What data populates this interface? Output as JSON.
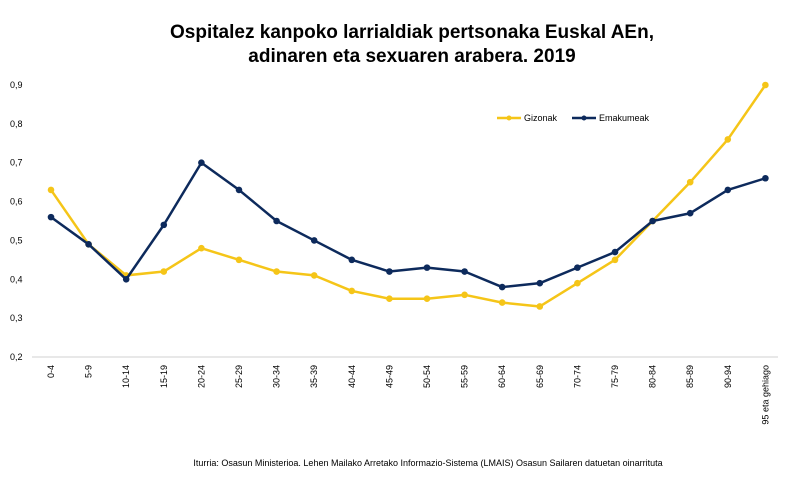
{
  "chart_data": {
    "type": "line",
    "title_line1": "Ospitalez kanpoko larrialdiak pertsonaka Euskal AEn,",
    "title_line2": "adinaren eta sexuaren arabera. 2019",
    "categories": [
      "0-4",
      "5-9",
      "10-14",
      "15-19",
      "20-24",
      "25-29",
      "30-34",
      "35-39",
      "40-44",
      "45-49",
      "50-54",
      "55-59",
      "60-64",
      "65-69",
      "70-74",
      "75-79",
      "80-84",
      "85-89",
      "90-94",
      "95 eta gehiago"
    ],
    "y_ticks": [
      "0,2",
      "0,3",
      "0,4",
      "0,5",
      "0,6",
      "0,7",
      "0,8",
      "0,9"
    ],
    "ylim": [
      0.2,
      0.9
    ],
    "series": [
      {
        "name": "Gizonak",
        "color": "#f5c518",
        "values": [
          0.63,
          0.49,
          0.41,
          0.42,
          0.48,
          0.45,
          0.42,
          0.41,
          0.37,
          0.35,
          0.35,
          0.36,
          0.34,
          0.33,
          0.39,
          0.45,
          0.55,
          0.65,
          0.76,
          0.9
        ]
      },
      {
        "name": "Emakumeak",
        "color": "#0d2a5c",
        "values": [
          0.56,
          0.49,
          0.4,
          0.54,
          0.7,
          0.63,
          0.55,
          0.5,
          0.45,
          0.42,
          0.43,
          0.42,
          0.38,
          0.39,
          0.43,
          0.47,
          0.55,
          0.57,
          0.63,
          0.66
        ]
      }
    ],
    "legend_position": "top-right",
    "grid": false
  },
  "source": "Iturria: Osasun Ministerioa. Lehen Mailako Arretako Informazio-Sistema (LMAIS) Osasun Sailaren datuetan oinarrituta"
}
